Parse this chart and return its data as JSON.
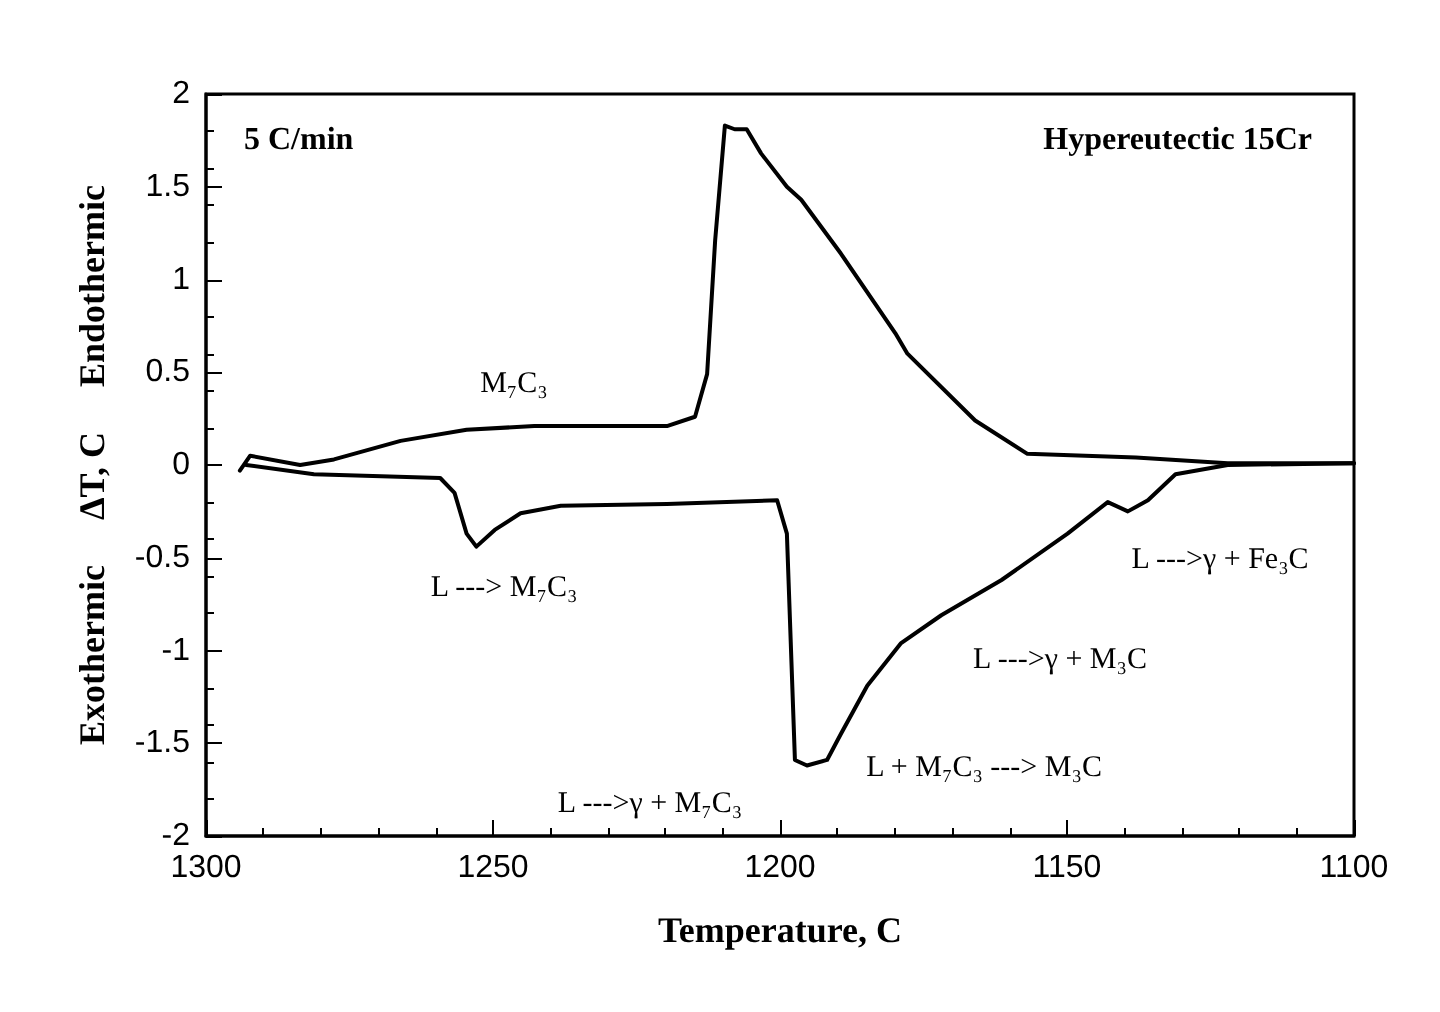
{
  "chart_data": {
    "type": "line",
    "xlabel": "Temperature, C",
    "ylabel": "Exothermic     ΔT, C     Endothermic",
    "xlim": [
      1300,
      1100
    ],
    "xticks": [
      1300,
      1250,
      1200,
      1150,
      1100
    ],
    "ylim": [
      -2,
      2
    ],
    "yticks": [
      -2,
      -1.5,
      -1,
      -0.5,
      0,
      0.5,
      1,
      1.5,
      2
    ],
    "marker": "none",
    "line_style": "solid",
    "annotations": [
      "5 C/min",
      "Hypereutectic 15Cr",
      "M₇C₃",
      "L ---> M₇C₃",
      "L --->γ + M₇C₃",
      "L + M₇C₃ ---> M₃C",
      "L --->γ + M₃C",
      "L --->γ + Fe₃C"
    ],
    "series": [
      {
        "color": "#000000",
        "x": [
          1294.1,
          1292.3,
          1283.6,
          1277.7,
          1266.1,
          1254.6,
          1242.8,
          1231.2,
          1219.7,
          1214.8,
          1212.7,
          1211.3,
          1209.6,
          1207.9,
          1205.8,
          1203.3,
          1198.8,
          1196.3,
          1189.4,
          1179.9,
          1177.8,
          1166,
          1156.9,
          1138,
          1122,
          1100
        ],
        "values": [
          -0.03,
          0.05,
          0,
          0.03,
          0.13,
          0.19,
          0.21,
          0.21,
          0.21,
          0.26,
          0.49,
          1.21,
          1.83,
          1.81,
          1.81,
          1.68,
          1.5,
          1.43,
          1.14,
          0.71,
          0.6,
          0.24,
          0.06,
          0.04,
          0.01,
          0.01
        ]
      },
      {
        "color": "#000000",
        "x": [
          1293,
          1281.2,
          1259.2,
          1256.7,
          1254.6,
          1252.9,
          1249.7,
          1245.2,
          1238.2,
          1219.7,
          1200.5,
          1198.8,
          1197.4,
          1195.3,
          1191.8,
          1189.4,
          1184.8,
          1178.9,
          1171.9,
          1161.4,
          1149.9,
          1142.9,
          1139.4,
          1135.9,
          1131.1,
          1122,
          1100
        ],
        "values": [
          0,
          -0.05,
          -0.07,
          -0.15,
          -0.37,
          -0.44,
          -0.35,
          -0.26,
          -0.22,
          -0.21,
          -0.19,
          -0.37,
          -1.59,
          -1.62,
          -1.59,
          -1.45,
          -1.19,
          -0.96,
          -0.81,
          -0.62,
          -0.37,
          -0.2,
          -0.25,
          -0.19,
          -0.05,
          0,
          0.01
        ]
      }
    ]
  }
}
